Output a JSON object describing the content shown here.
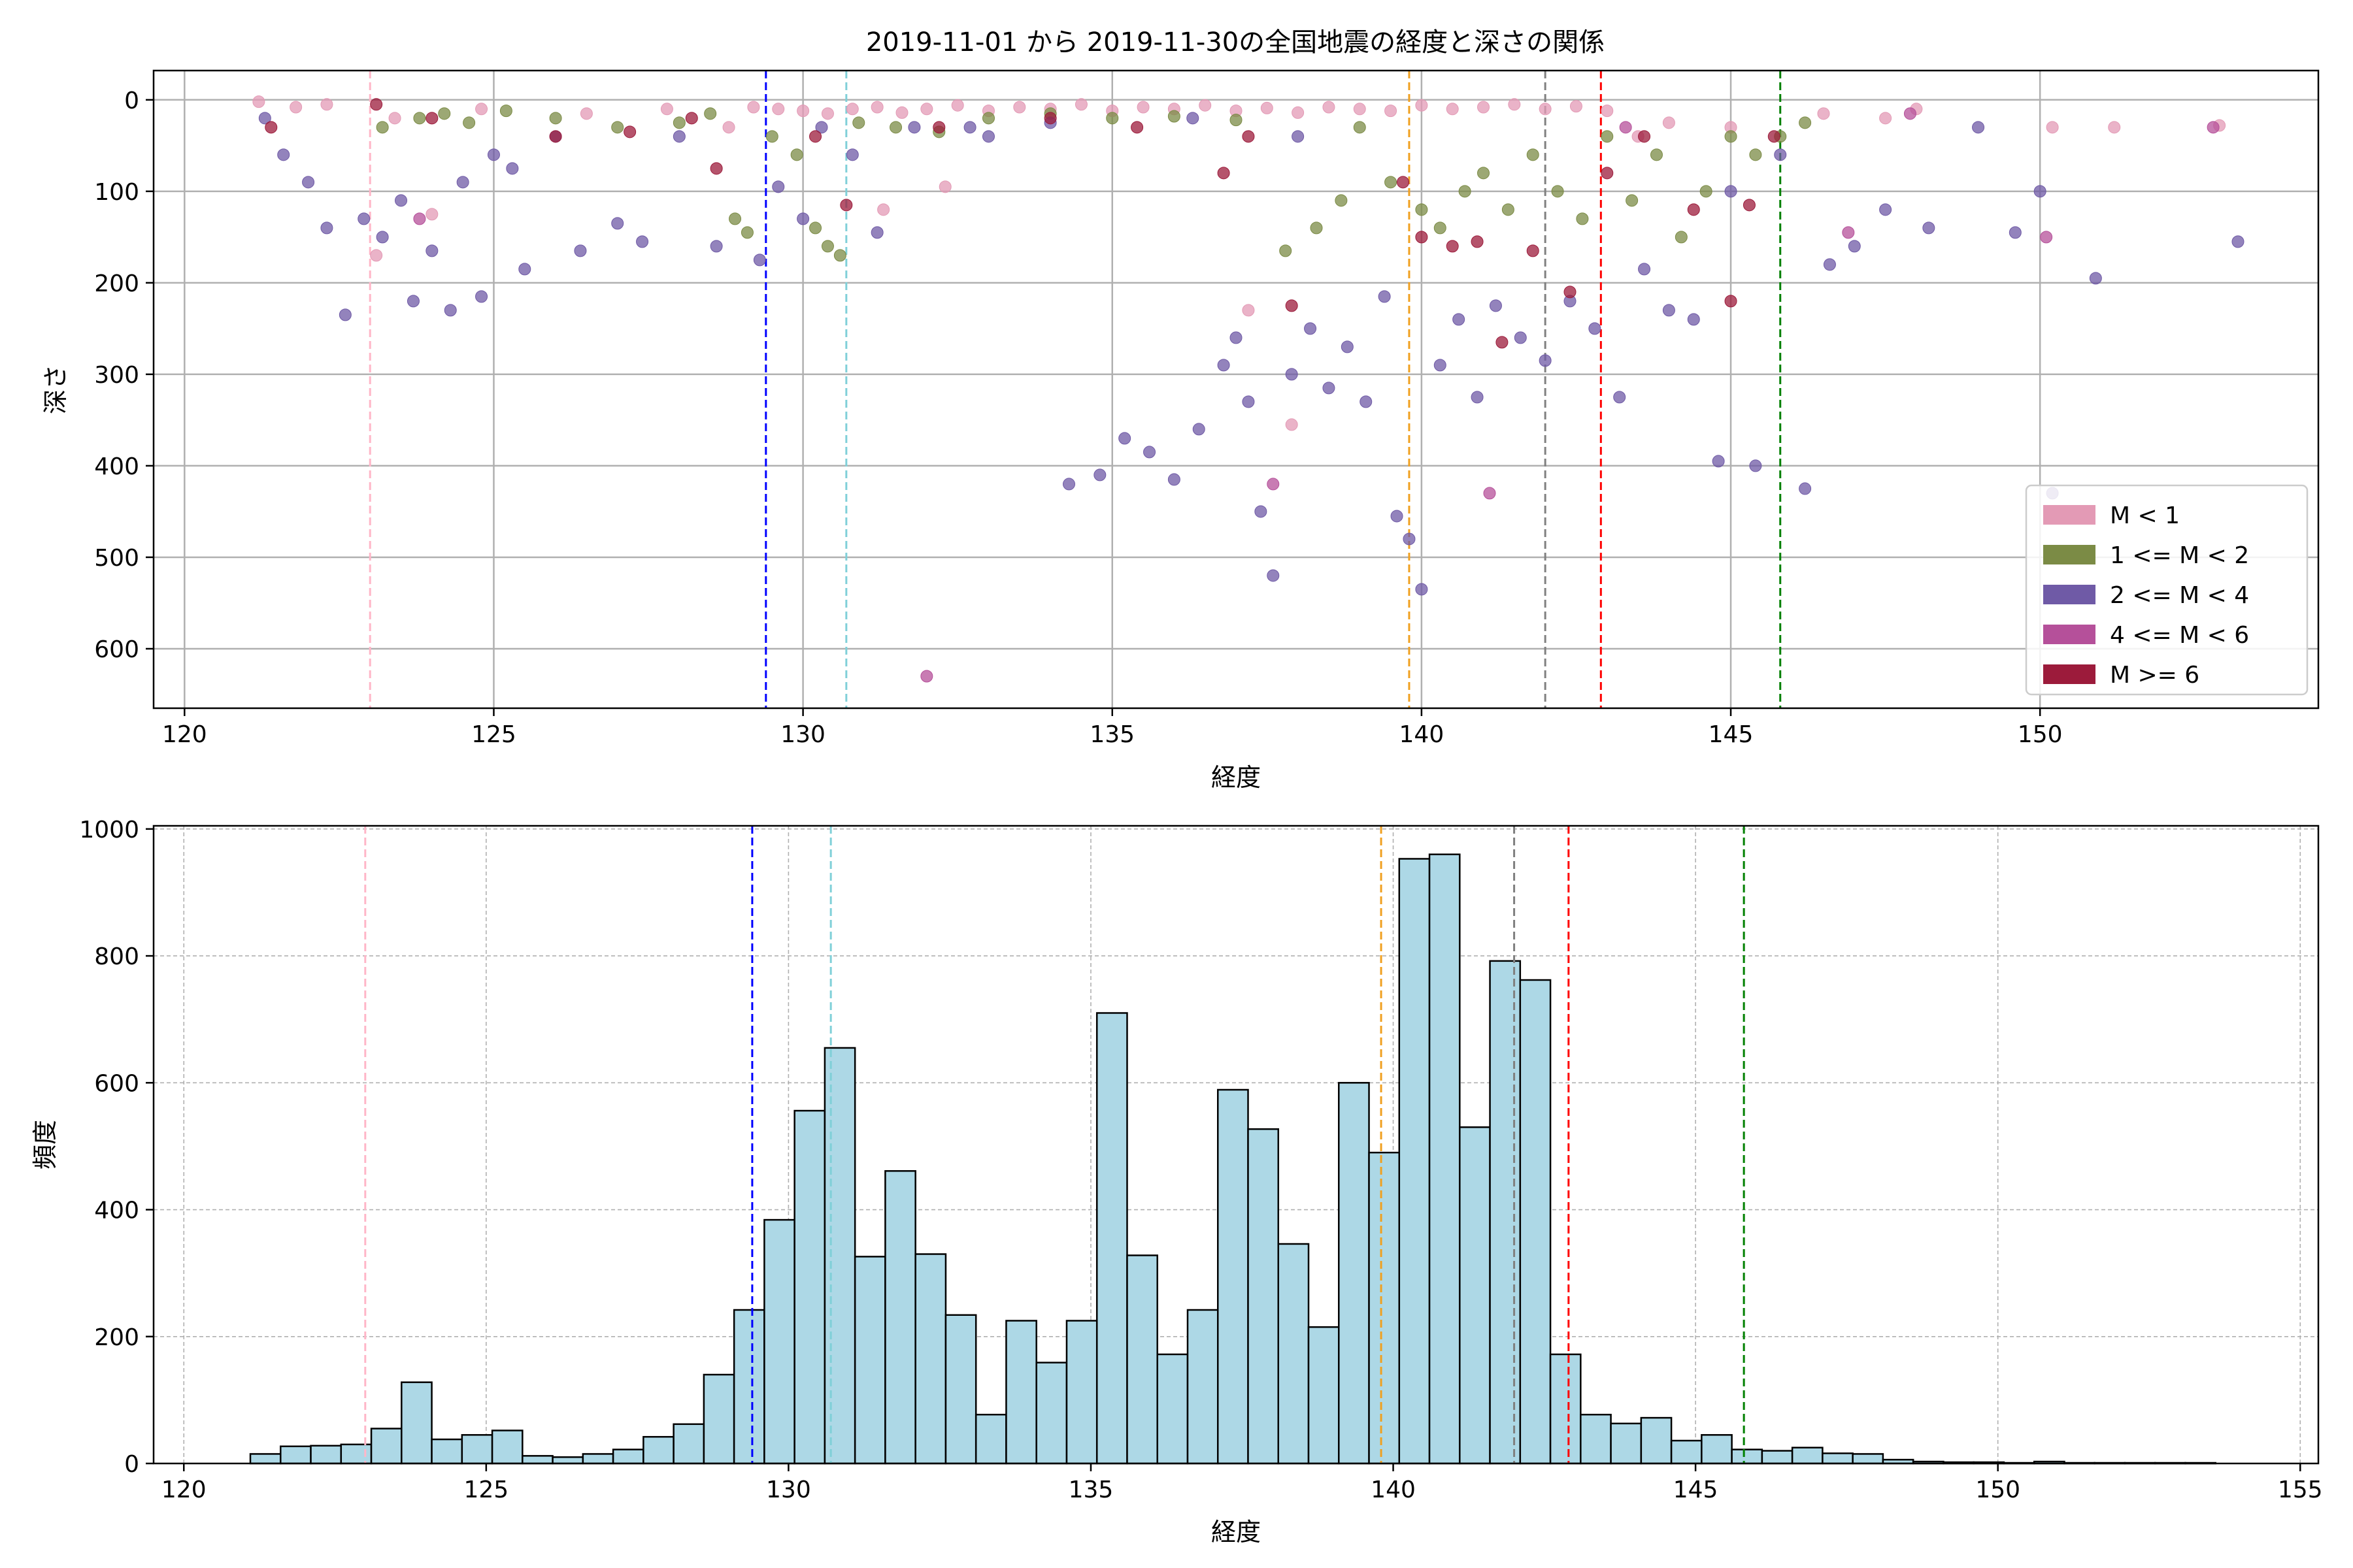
{
  "chart_data": [
    {
      "type": "scatter",
      "title": "2019-11-01 から 2019-11-30の全国地震の経度と深さの関係",
      "xlabel": "経度",
      "ylabel": "深さ",
      "xlim": [
        119.5,
        154.5
      ],
      "ylim": [
        665,
        -32
      ],
      "y_inverted": true,
      "xticks": [
        120,
        125,
        130,
        135,
        140,
        145,
        150
      ],
      "yticks": [
        0,
        100,
        200,
        300,
        400,
        500,
        600
      ],
      "grid": true,
      "legend_position": "lower-right",
      "legend": [
        {
          "label": "M < 1",
          "color": "#e39ab5"
        },
        {
          "label": "1 <= M < 2",
          "color": "#7b8b45"
        },
        {
          "label": "2 <= M < 4",
          "color": "#6f5aa6"
        },
        {
          "label": "4 <= M < 6",
          "color": "#b5509a"
        },
        {
          "label": "M >= 6",
          "color": "#9c1b3b"
        }
      ],
      "vlines": [
        {
          "x": 123.0,
          "color": "#ffb6c8"
        },
        {
          "x": 129.4,
          "color": "#0000ff"
        },
        {
          "x": 130.7,
          "color": "#80d0d8"
        },
        {
          "x": 139.8,
          "color": "#f0a020"
        },
        {
          "x": 142.0,
          "color": "#808080"
        },
        {
          "x": 142.9,
          "color": "#ff0000"
        },
        {
          "x": 145.8,
          "color": "#008000"
        }
      ],
      "series": [
        {
          "name": "M < 1",
          "color": "#e39ab5",
          "points": [
            [
              121.2,
              2
            ],
            [
              121.8,
              8
            ],
            [
              122.3,
              5
            ],
            [
              123.1,
              170
            ],
            [
              123.4,
              20
            ],
            [
              124.0,
              125
            ],
            [
              124.8,
              10
            ],
            [
              126.5,
              15
            ],
            [
              127.8,
              10
            ],
            [
              128.8,
              30
            ],
            [
              129.2,
              8
            ],
            [
              129.6,
              10
            ],
            [
              130.0,
              12
            ],
            [
              130.4,
              15
            ],
            [
              130.8,
              10
            ],
            [
              131.2,
              8
            ],
            [
              131.6,
              14
            ],
            [
              132.0,
              10
            ],
            [
              132.5,
              6
            ],
            [
              133.0,
              12
            ],
            [
              133.5,
              8
            ],
            [
              134.0,
              10
            ],
            [
              134.5,
              5
            ],
            [
              135.0,
              12
            ],
            [
              135.5,
              8
            ],
            [
              136.0,
              10
            ],
            [
              136.5,
              6
            ],
            [
              137.0,
              12
            ],
            [
              137.5,
              9
            ],
            [
              138.0,
              14
            ],
            [
              138.5,
              8
            ],
            [
              139.0,
              10
            ],
            [
              139.5,
              12
            ],
            [
              140.0,
              6
            ],
            [
              140.5,
              10
            ],
            [
              141.0,
              8
            ],
            [
              141.5,
              5
            ],
            [
              142.0,
              10
            ],
            [
              142.5,
              7
            ],
            [
              143.0,
              12
            ],
            [
              143.5,
              40
            ],
            [
              144.0,
              25
            ],
            [
              145.0,
              30
            ],
            [
              146.5,
              15
            ],
            [
              147.5,
              20
            ],
            [
              148.0,
              10
            ],
            [
              150.2,
              30
            ],
            [
              151.2,
              30
            ],
            [
              152.9,
              28
            ],
            [
              137.2,
              230
            ],
            [
              137.9,
              355
            ],
            [
              131.3,
              120
            ],
            [
              132.3,
              95
            ]
          ]
        },
        {
          "name": "1 <= M < 2",
          "color": "#7b8b45",
          "points": [
            [
              123.2,
              30
            ],
            [
              123.8,
              20
            ],
            [
              124.2,
              15
            ],
            [
              124.6,
              25
            ],
            [
              125.2,
              12
            ],
            [
              126.0,
              20
            ],
            [
              127.0,
              30
            ],
            [
              128.0,
              25
            ],
            [
              128.5,
              15
            ],
            [
              128.9,
              130
            ],
            [
              129.1,
              145
            ],
            [
              129.5,
              40
            ],
            [
              129.9,
              60
            ],
            [
              130.2,
              140
            ],
            [
              130.4,
              160
            ],
            [
              130.6,
              170
            ],
            [
              130.9,
              25
            ],
            [
              131.5,
              30
            ],
            [
              132.2,
              35
            ],
            [
              133.0,
              20
            ],
            [
              134.0,
              15
            ],
            [
              135.0,
              20
            ],
            [
              136.0,
              18
            ],
            [
              137.0,
              22
            ],
            [
              137.8,
              165
            ],
            [
              138.3,
              140
            ],
            [
              138.7,
              110
            ],
            [
              139.0,
              30
            ],
            [
              139.5,
              90
            ],
            [
              140.0,
              120
            ],
            [
              140.3,
              140
            ],
            [
              140.7,
              100
            ],
            [
              141.0,
              80
            ],
            [
              141.4,
              120
            ],
            [
              141.8,
              60
            ],
            [
              142.2,
              100
            ],
            [
              142.6,
              130
            ],
            [
              143.0,
              40
            ],
            [
              143.4,
              110
            ],
            [
              143.8,
              60
            ],
            [
              144.2,
              150
            ],
            [
              144.6,
              100
            ],
            [
              145.0,
              40
            ],
            [
              145.4,
              60
            ],
            [
              145.8,
              40
            ],
            [
              146.2,
              25
            ]
          ]
        },
        {
          "name": "2 <= M < 4",
          "color": "#6f5aa6",
          "points": [
            [
              121.3,
              20
            ],
            [
              121.6,
              60
            ],
            [
              122.0,
              90
            ],
            [
              122.3,
              140
            ],
            [
              122.6,
              235
            ],
            [
              122.9,
              130
            ],
            [
              123.2,
              150
            ],
            [
              123.5,
              110
            ],
            [
              123.7,
              220
            ],
            [
              124.0,
              165
            ],
            [
              124.3,
              230
            ],
            [
              124.5,
              90
            ],
            [
              124.8,
              215
            ],
            [
              125.0,
              60
            ],
            [
              125.3,
              75
            ],
            [
              125.5,
              185
            ],
            [
              126.0,
              40
            ],
            [
              126.4,
              165
            ],
            [
              127.0,
              135
            ],
            [
              127.4,
              155
            ],
            [
              128.0,
              40
            ],
            [
              128.6,
              160
            ],
            [
              129.3,
              175
            ],
            [
              129.6,
              95
            ],
            [
              130.0,
              130
            ],
            [
              130.3,
              30
            ],
            [
              130.8,
              60
            ],
            [
              131.2,
              145
            ],
            [
              131.8,
              30
            ],
            [
              133.0,
              40
            ],
            [
              134.0,
              25
            ],
            [
              134.3,
              420
            ],
            [
              134.8,
              410
            ],
            [
              135.2,
              370
            ],
            [
              135.6,
              385
            ],
            [
              136.0,
              415
            ],
            [
              136.4,
              360
            ],
            [
              136.8,
              290
            ],
            [
              137.0,
              260
            ],
            [
              137.2,
              330
            ],
            [
              137.4,
              450
            ],
            [
              137.6,
              520
            ],
            [
              137.9,
              300
            ],
            [
              138.2,
              250
            ],
            [
              138.5,
              315
            ],
            [
              138.8,
              270
            ],
            [
              139.1,
              330
            ],
            [
              139.4,
              215
            ],
            [
              139.6,
              455
            ],
            [
              139.8,
              480
            ],
            [
              140.0,
              535
            ],
            [
              140.3,
              290
            ],
            [
              140.6,
              240
            ],
            [
              140.9,
              325
            ],
            [
              141.2,
              225
            ],
            [
              141.6,
              260
            ],
            [
              142.0,
              285
            ],
            [
              142.4,
              220
            ],
            [
              142.8,
              250
            ],
            [
              143.2,
              325
            ],
            [
              143.6,
              185
            ],
            [
              144.0,
              230
            ],
            [
              144.4,
              240
            ],
            [
              144.8,
              395
            ],
            [
              145.0,
              100
            ],
            [
              145.4,
              400
            ],
            [
              145.8,
              60
            ],
            [
              146.2,
              425
            ],
            [
              146.6,
              180
            ],
            [
              147.0,
              160
            ],
            [
              147.5,
              120
            ],
            [
              148.2,
              140
            ],
            [
              149.0,
              30
            ],
            [
              149.6,
              145
            ],
            [
              150.0,
              100
            ],
            [
              150.2,
              430
            ],
            [
              150.9,
              195
            ],
            [
              153.2,
              155
            ],
            [
              132.7,
              30
            ],
            [
              136.3,
              20
            ],
            [
              138.0,
              40
            ]
          ]
        },
        {
          "name": "4 <= M < 6",
          "color": "#b5509a",
          "points": [
            [
              123.8,
              130
            ],
            [
              132.0,
              630
            ],
            [
              137.6,
              420
            ],
            [
              141.1,
              430
            ],
            [
              146.9,
              145
            ],
            [
              150.1,
              150
            ],
            [
              152.8,
              30
            ],
            [
              147.9,
              15
            ],
            [
              143.3,
              30
            ]
          ]
        },
        {
          "name": "M >= 6",
          "color": "#9c1b3b",
          "points": [
            [
              121.4,
              30
            ],
            [
              123.1,
              5
            ],
            [
              124.0,
              20
            ],
            [
              126.0,
              40
            ],
            [
              127.2,
              35
            ],
            [
              128.2,
              20
            ],
            [
              128.6,
              75
            ],
            [
              130.2,
              40
            ],
            [
              130.7,
              115
            ],
            [
              132.2,
              30
            ],
            [
              134.0,
              20
            ],
            [
              135.4,
              30
            ],
            [
              136.8,
              80
            ],
            [
              137.2,
              40
            ],
            [
              137.9,
              225
            ],
            [
              139.7,
              90
            ],
            [
              140.0,
              150
            ],
            [
              140.5,
              160
            ],
            [
              140.9,
              155
            ],
            [
              141.3,
              265
            ],
            [
              141.8,
              165
            ],
            [
              142.4,
              210
            ],
            [
              143.0,
              80
            ],
            [
              143.6,
              40
            ],
            [
              144.4,
              120
            ],
            [
              145.0,
              220
            ],
            [
              145.3,
              115
            ],
            [
              145.7,
              40
            ]
          ]
        }
      ]
    },
    {
      "type": "bar",
      "xlabel": "経度",
      "ylabel": "頻度",
      "xlim": [
        119.5,
        155.3
      ],
      "ylim": [
        0,
        1005
      ],
      "xticks": [
        120,
        125,
        130,
        135,
        140,
        145,
        150,
        155
      ],
      "yticks": [
        0,
        200,
        400,
        600,
        800,
        1000
      ],
      "grid": true,
      "bar_color": "#add8e6",
      "bin_start": 121.1,
      "bin_width": 0.5,
      "values": [
        15,
        27,
        28,
        30,
        55,
        128,
        38,
        45,
        52,
        12,
        10,
        15,
        22,
        42,
        62,
        140,
        242,
        384,
        556,
        655,
        326,
        461,
        330,
        234,
        77,
        225,
        159,
        225,
        710,
        328,
        172,
        242,
        589,
        527,
        346,
        215,
        600,
        490,
        953,
        960,
        530,
        792,
        762,
        172,
        77,
        63,
        72,
        36,
        45,
        22,
        20,
        25,
        16,
        15,
        6,
        3,
        2,
        2,
        1,
        3,
        1,
        1,
        1,
        1,
        1
      ],
      "vlines": [
        {
          "x": 123.0,
          "color": "#ffb6c8"
        },
        {
          "x": 129.4,
          "color": "#0000ff"
        },
        {
          "x": 130.7,
          "color": "#80d0d8"
        },
        {
          "x": 139.8,
          "color": "#f0a020"
        },
        {
          "x": 142.0,
          "color": "#808080"
        },
        {
          "x": 142.9,
          "color": "#ff0000"
        },
        {
          "x": 145.8,
          "color": "#008000"
        }
      ]
    }
  ]
}
